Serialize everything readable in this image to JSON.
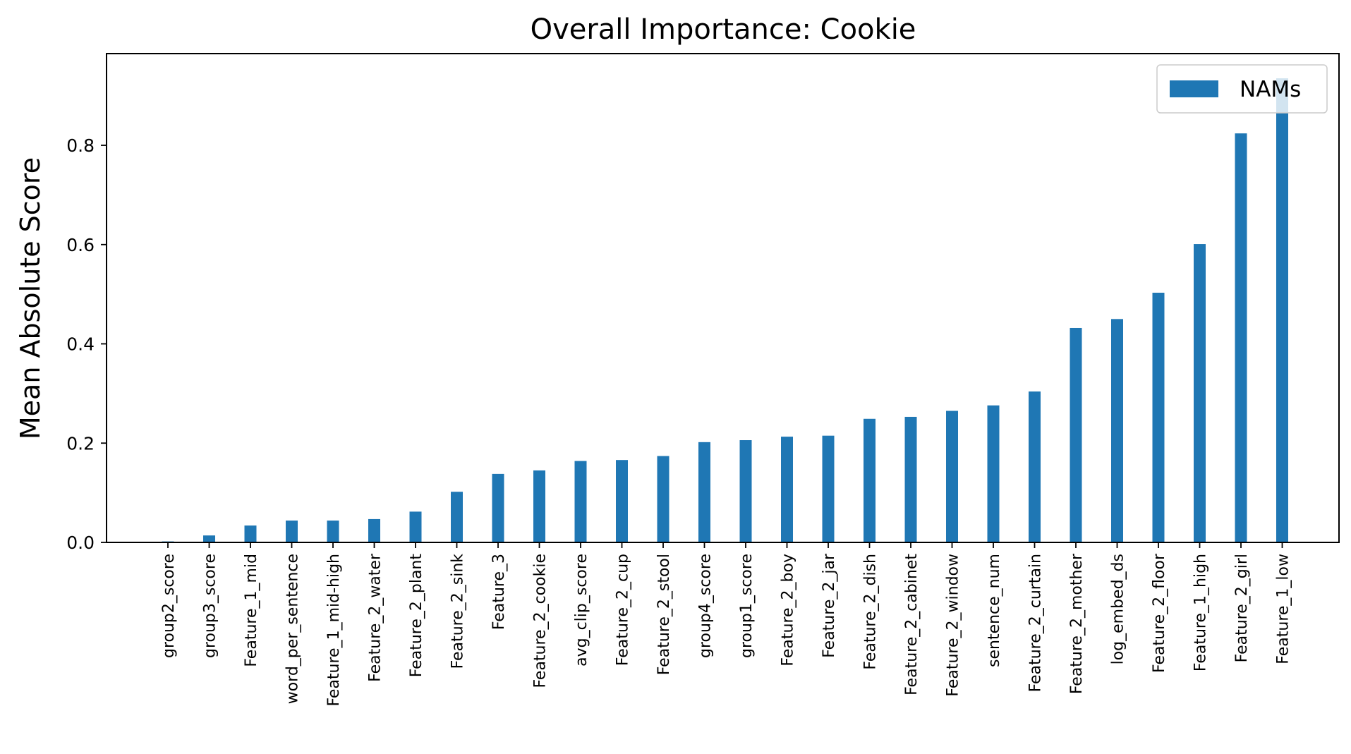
{
  "chart_data": {
    "type": "bar",
    "title": "Overall Importance: Cookie",
    "xlabel": "",
    "ylabel": "Mean Absolute Score",
    "ylim": [
      0.0,
      0.98
    ],
    "yticks": [
      "0.0",
      "0.2",
      "0.4",
      "0.6",
      "0.8"
    ],
    "grid": false,
    "legend_position": "upper-right",
    "categories": [
      "group2_score",
      "group3_score",
      "Feature_1_mid",
      "word_per_sentence",
      "Feature_1_mid-high",
      "Feature_2_water",
      "Feature_2_plant",
      "Feature_2_sink",
      "Feature_3",
      "Feature_2_cookie",
      "avg_clip_score",
      "Feature_2_cup",
      "Feature_2_stool",
      "group4_score",
      "group1_score",
      "Feature_2_boy",
      "Feature_2_jar",
      "Feature_2_dish",
      "Feature_2_cabinet",
      "Feature_2_window",
      "sentence_num",
      "Feature_2_curtain",
      "Feature_2_mother",
      "log_embed_ds",
      "Feature_2_floor",
      "Feature_1_high",
      "Feature_2_girl",
      "Feature_1_low"
    ],
    "series": [
      {
        "name": "NAMs",
        "color": "#1f77b4",
        "values": [
          0.002,
          0.014,
          0.034,
          0.044,
          0.044,
          0.047,
          0.062,
          0.102,
          0.138,
          0.145,
          0.164,
          0.166,
          0.174,
          0.202,
          0.206,
          0.213,
          0.215,
          0.249,
          0.253,
          0.265,
          0.276,
          0.304,
          0.432,
          0.45,
          0.503,
          0.601,
          0.824,
          0.935
        ]
      }
    ]
  }
}
